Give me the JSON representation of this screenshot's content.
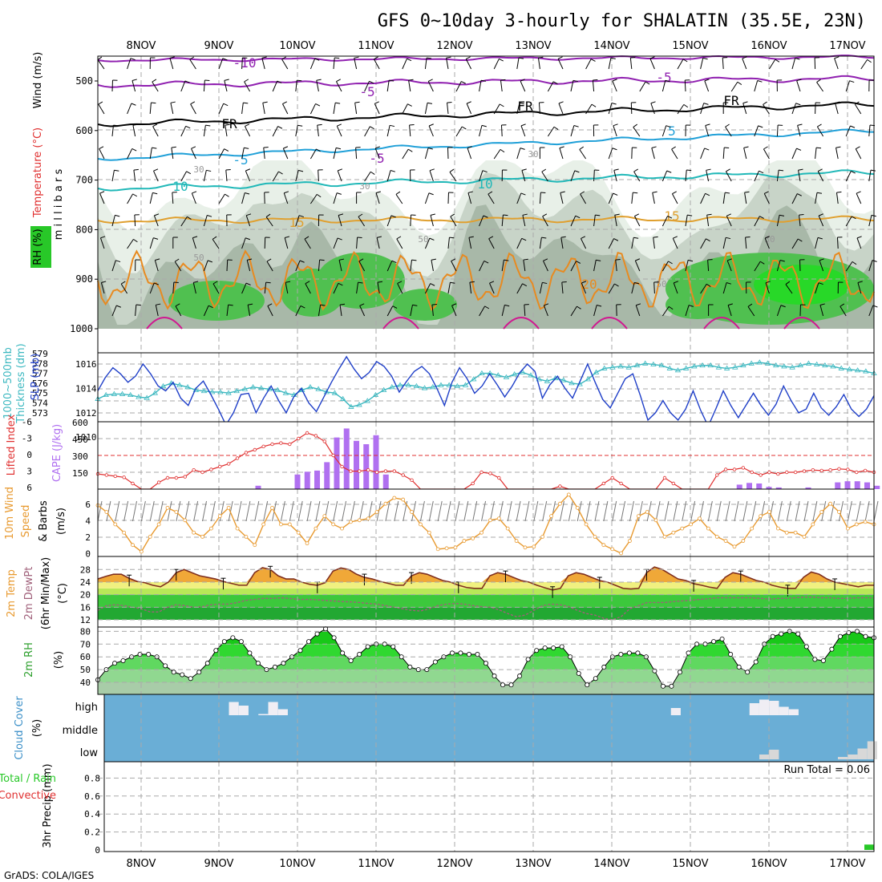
{
  "title": "GFS 0~10day 3-hourly for SHALATIN (35.5E, 23N)",
  "footer": "GrADS: COLA/IGES",
  "dates": [
    "8NOV",
    "9NOV",
    "10NOV",
    "11NOV",
    "12NOV",
    "13NOV",
    "14NOV",
    "15NOV",
    "16NOV",
    "17NOV"
  ],
  "colors": {
    "frame": "#000000",
    "grid": "#aaaaaa",
    "cloud_bg": "#6aaed6",
    "slp": "#1f3fc8",
    "thick": "#3cb8c0",
    "lifted": "#e03030",
    "cape": "#b070f0",
    "wind10": "#e89a30",
    "rh_text": "#2ea02e",
    "precip": "#28c828"
  },
  "upper_air": {
    "ylabels": [
      "Temperature (°C)",
      "Wind (m/s)",
      "RH (%)",
      "m i l l i b a r s"
    ],
    "ticks": [
      "500",
      "600",
      "700",
      "800",
      "900",
      "1000"
    ],
    "contour_labels": [
      "-10",
      "-5",
      "-5",
      "FR",
      "FR",
      "FR",
      "-5",
      "-5",
      "5",
      "10",
      "10",
      "15",
      "15",
      "20",
      "30",
      "30",
      "30",
      "50",
      "50",
      "50",
      "30"
    ]
  },
  "slp_panel": {
    "ylabels": [
      "1000~500mb",
      "Thickness (dm)",
      "SLP (mb)"
    ],
    "left_ticks": [
      "579",
      "578",
      "577",
      "576",
      "575",
      "574",
      "573"
    ],
    "right_ticks": [
      "1016",
      "1014",
      "1012",
      "1010"
    ]
  },
  "cape_panel": {
    "ylabels": [
      "Lifted Index",
      "CAPE (J/kg)"
    ],
    "left_ticks": [
      "-6",
      "-3",
      "0",
      "3",
      "6"
    ],
    "right_ticks": [
      "600",
      "450",
      "300",
      "150"
    ]
  },
  "wind_panel": {
    "ylabels": [
      "10m Wind",
      "Speed",
      "& Barbs",
      "(m/s)"
    ],
    "ticks": [
      "6",
      "4",
      "2",
      "0"
    ]
  },
  "temp_panel": {
    "ylabels": [
      "2m Temp",
      "2m DewPt",
      "(6hr Min/Max)",
      "(°C)"
    ],
    "ticks": [
      "28",
      "24",
      "20",
      "16",
      "12"
    ]
  },
  "rh_panel": {
    "ylabels": [
      "2m RH",
      "(%)"
    ],
    "ticks": [
      "80",
      "70",
      "60",
      "50",
      "40"
    ]
  },
  "cloud_panel": {
    "ylabels": [
      "Cloud Cover",
      "(%)"
    ],
    "levels": [
      "high",
      "middle",
      "low"
    ]
  },
  "precip_panel": {
    "ylabels": [
      "3hr Precip (mm)",
      "Total / Rain",
      "Convective"
    ],
    "ticks": [
      "0.8",
      "0.6",
      "0.4",
      "0.2",
      "0"
    ],
    "run_total": "Run Total = 0.06"
  },
  "chart_data": [
    {
      "type": "line",
      "title": "SLP (mb)",
      "xlabel": "",
      "ylabel": "SLP (mb)",
      "ylim": [
        1010,
        1017
      ],
      "series": [
        {
          "name": "SLP",
          "values": [
            1013.8,
            1014.9,
            1015.7,
            1015.2,
            1014.5,
            1015.0,
            1016.0,
            1015.2,
            1014.2,
            1013.8,
            1014.5,
            1013.2,
            1012.6,
            1014.0,
            1014.6,
            1013.5,
            1012.3,
            1011.0,
            1012.0,
            1013.5,
            1013.6,
            1012.0,
            1013.2,
            1014.2,
            1013.0,
            1012.0,
            1013.3,
            1014.0,
            1012.8,
            1012.1,
            1013.3,
            1014.5,
            1015.6,
            1016.6,
            1015.6,
            1014.8,
            1015.3,
            1016.2,
            1015.8,
            1015.0,
            1013.7,
            1014.6,
            1015.4,
            1015.8,
            1015.2,
            1014.0,
            1012.6,
            1014.5,
            1015.7,
            1014.8,
            1013.6,
            1014.2,
            1015.2,
            1014.3,
            1013.3,
            1014.2,
            1015.3,
            1016.0,
            1015.4,
            1013.2,
            1014.3,
            1015.0,
            1014.0,
            1013.2,
            1014.6,
            1016.0,
            1014.5,
            1013.1,
            1012.4,
            1013.6,
            1014.8,
            1015.2,
            1013.4,
            1011.4,
            1012.0,
            1013.0,
            1012.0,
            1011.4,
            1012.3,
            1013.8,
            1012.2,
            1010.9,
            1012.3,
            1013.8,
            1012.6,
            1011.6,
            1012.6,
            1013.6,
            1012.6,
            1011.8,
            1012.7,
            1014.2,
            1013.0,
            1012.0,
            1012.3,
            1013.6,
            1012.4,
            1011.8,
            1012.5,
            1013.5,
            1012.3,
            1011.7,
            1012.3,
            1013.4
          ]
        }
      ]
    },
    {
      "type": "line",
      "title": "1000~500mb Thickness (dm)",
      "xlabel": "",
      "ylabel": "Thickness (dm)",
      "ylim": [
        573,
        579
      ],
      "series": [
        {
          "name": "Thickness",
          "values": [
            574.4,
            574.8,
            574.9,
            574.9,
            574.8,
            574.6,
            574.5,
            575.0,
            575.7,
            576.0,
            575.8,
            575.6,
            575.3,
            575.2,
            575.1,
            575.1,
            575.0,
            575.2,
            575.4,
            575.6,
            575.5,
            575.4,
            575.3,
            575.0,
            574.8,
            575.3,
            575.6,
            575.4,
            575.1,
            575.0,
            574.4,
            573.6,
            573.8,
            574.2,
            574.8,
            575.3,
            575.6,
            575.8,
            575.8,
            575.7,
            575.5,
            575.6,
            575.8,
            575.8,
            575.7,
            575.8,
            576.4,
            577.0,
            577.0,
            576.8,
            576.6,
            576.9,
            577.1,
            576.8,
            576.4,
            576.2,
            576.5,
            576.3,
            576.0,
            575.9,
            576.4,
            577.1,
            577.5,
            577.6,
            577.7,
            577.6,
            577.8,
            578.0,
            577.9,
            577.8,
            577.5,
            577.3,
            577.5,
            577.7,
            577.8,
            577.8,
            577.6,
            577.5,
            577.6,
            577.8,
            578.0,
            578.1,
            578.0,
            577.8,
            577.7,
            577.6,
            577.8,
            578.0,
            577.9,
            577.8,
            577.7,
            577.5,
            577.4,
            577.3,
            577.2,
            577.0
          ]
        }
      ]
    },
    {
      "type": "line",
      "title": "Lifted Index",
      "xlabel": "",
      "ylabel": "Lifted Index",
      "ylim": [
        -6,
        6
      ],
      "series": [
        {
          "name": "Lifted Index",
          "values": [
            3.3,
            3.5,
            3.7,
            3.9,
            5.0,
            6.0,
            6.5,
            4.8,
            4.0,
            4.0,
            3.8,
            2.6,
            3.0,
            2.5,
            2.0,
            1.5,
            0.5,
            -0.5,
            -1.0,
            -1.6,
            -2.0,
            -2.2,
            -2.0,
            -3.0,
            -4.0,
            -3.5,
            -2.5,
            0.0,
            2.0,
            2.8,
            2.8,
            2.6,
            3.0,
            2.8,
            2.8,
            3.5,
            4.4,
            6.0,
            6.5,
            6.5,
            6.5,
            6.5,
            6.3,
            5.0,
            3.0,
            3.2,
            4.0,
            6.5,
            6.5,
            6.5,
            6.5,
            6.5,
            6.5,
            5.5,
            6.0,
            6.5,
            6.5,
            6.5,
            5.0,
            4.0,
            5.0,
            6.5,
            6.5,
            6.5,
            6.5,
            4.0,
            5.0,
            6.5,
            6.5,
            6.5,
            6.5,
            3.5,
            2.5,
            2.5,
            2.2,
            3.0,
            3.5,
            3.0,
            3.3,
            3.0,
            3.0,
            2.8,
            2.6,
            2.7,
            2.6,
            2.4,
            2.5,
            3.0,
            2.7,
            3.0
          ]
        }
      ]
    },
    {
      "type": "bar",
      "title": "CAPE (J/kg)",
      "xlabel": "",
      "ylabel": "CAPE (J/kg)",
      "ylim": [
        0,
        600
      ],
      "categories": [
        "9NOV 12Z",
        "10NOV 00Z",
        "10NOV 03Z",
        "10NOV 06Z",
        "10NOV 09Z",
        "10NOV 12Z",
        "10NOV 15Z",
        "10NOV 18Z",
        "10NOV 21Z",
        "11NOV 00Z",
        "11NOV 03Z",
        "15NOV 15Z",
        "15NOV 18Z",
        "15NOV 21Z",
        "16NOV 00Z",
        "16NOV 03Z",
        "16NOV 12Z",
        "16NOV 21Z",
        "17NOV 00Z",
        "17NOV 03Z",
        "17NOV 06Z",
        "17NOV 09Z"
      ],
      "values": [
        30,
        130,
        155,
        165,
        240,
        460,
        540,
        430,
        400,
        480,
        130,
        40,
        55,
        50,
        20,
        15,
        15,
        60,
        70,
        70,
        60,
        30
      ]
    },
    {
      "type": "line",
      "title": "10m Wind Speed (m/s)",
      "xlabel": "",
      "ylabel": "Speed (m/s)",
      "ylim": [
        0,
        7
      ],
      "series": [
        {
          "name": "Wind speed",
          "values": [
            5.8,
            5.0,
            3.5,
            2.5,
            1.0,
            0.2,
            2.0,
            3.5,
            5.5,
            5.0,
            4.0,
            2.5,
            2.0,
            3.0,
            4.5,
            5.5,
            3.0,
            2.0,
            1.0,
            3.5,
            5.5,
            3.5,
            3.5,
            2.5,
            1.2,
            3.0,
            4.5,
            3.5,
            3.0,
            3.8,
            4.0,
            4.2,
            5.0,
            6.0,
            6.7,
            6.5,
            5.0,
            3.5,
            2.5,
            0.5,
            0.6,
            0.7,
            1.5,
            1.8,
            2.5,
            4.0,
            4.2,
            3.0,
            1.5,
            0.7,
            0.8,
            2.0,
            4.5,
            6.0,
            7.1,
            5.5,
            3.5,
            2.0,
            1.0,
            0.5,
            0.0,
            1.5,
            4.5,
            5.0,
            4.0,
            2.0,
            2.5,
            3.0,
            3.5,
            4.2,
            3.0,
            2.0,
            1.5,
            0.8,
            1.5,
            3.0,
            4.5,
            5.0,
            3.0,
            2.5,
            2.5,
            2.0,
            3.5,
            5.0,
            6.0,
            5.0,
            3.0,
            3.5,
            3.8,
            3.5
          ]
        }
      ]
    },
    {
      "type": "area",
      "title": "2m Temp / DewPt (°C)",
      "xlabel": "",
      "ylabel": "°C",
      "ylim": [
        10,
        30
      ],
      "series": [
        {
          "name": "2m Temp",
          "values": [
            25.0,
            25.8,
            26.5,
            26.5,
            25.2,
            24.2,
            23.8,
            23.0,
            22.5,
            24.0,
            27.0,
            28.0,
            27.0,
            26.0,
            25.5,
            25.0,
            24.2,
            23.6,
            23.0,
            23.0,
            27.0,
            28.6,
            28.0,
            26.0,
            25.0,
            25.0,
            24.0,
            23.3,
            23.0,
            23.8,
            27.5,
            28.5,
            28.0,
            26.5,
            25.5,
            25.0,
            24.2,
            23.6,
            23.0,
            23.0,
            26.0,
            27.0,
            26.5,
            25.5,
            24.5,
            24.0,
            23.0,
            22.3,
            22.0,
            22.0,
            26.0,
            27.0,
            26.5,
            25.5,
            24.5,
            24.0,
            23.0,
            22.2,
            21.5,
            22.0,
            26.0,
            27.0,
            26.5,
            25.5,
            24.5,
            24.0,
            23.0,
            22.0,
            21.8,
            22.0,
            27.0,
            28.8,
            28.0,
            26.5,
            25.0,
            24.5,
            23.5,
            23.0,
            22.4,
            22.0,
            25.5,
            27.0,
            26.5,
            25.5,
            24.5,
            24.0,
            23.0,
            22.4,
            22.0,
            22.0,
            25.5,
            27.2,
            26.5,
            25.0,
            24.0,
            23.5,
            23.0,
            22.5,
            23.0,
            23.0
          ]
        },
        {
          "name": "2m DewPt",
          "values": [
            15.0,
            16.5,
            16.8,
            16.5,
            16.0,
            15.5,
            14.5,
            14.5,
            16.0,
            16.8,
            16.5,
            16.0,
            16.2,
            16.8,
            17.0,
            17.0,
            17.5,
            18.2,
            18.5,
            18.8,
            18.8,
            19.0,
            18.8,
            18.5,
            18.5,
            18.4,
            18.2,
            18.0,
            17.8,
            17.7,
            17.5,
            17.2,
            17.0,
            16.5,
            16.0,
            15.5,
            15.0,
            14.8,
            15.5,
            16.5,
            17.0,
            17.2,
            17.0,
            16.5,
            16.2,
            16.0,
            15.2,
            14.0,
            13.0,
            13.5,
            15.0,
            16.5,
            17.0,
            16.8,
            16.2,
            15.0,
            14.0,
            13.5,
            12.5,
            12.0,
            13.0,
            15.5,
            16.5,
            17.5,
            17.5,
            17.5,
            17.8,
            18.0,
            18.2,
            18.5,
            18.7,
            19.0,
            19.0,
            19.0,
            19.0,
            19.0,
            18.8,
            18.6,
            18.8,
            18.8,
            19.0,
            19.2,
            19.2,
            19.0,
            19.0,
            18.8,
            18.8,
            19.0,
            19.0,
            19.0
          ]
        }
      ]
    },
    {
      "type": "area",
      "title": "2m RH (%)",
      "xlabel": "",
      "ylabel": "%",
      "ylim": [
        30,
        85
      ],
      "series": [
        {
          "name": "2m RH",
          "values": [
            42,
            50,
            55,
            57,
            60,
            62,
            62,
            60,
            53,
            48,
            46,
            43,
            48,
            55,
            65,
            72,
            75,
            72,
            63,
            55,
            50,
            52,
            55,
            60,
            65,
            72,
            78,
            82,
            75,
            63,
            57,
            62,
            68,
            70,
            70,
            68,
            60,
            52,
            50,
            50,
            56,
            60,
            63,
            63,
            62,
            62,
            55,
            45,
            38,
            38,
            45,
            58,
            65,
            67,
            67,
            68,
            60,
            47,
            38,
            43,
            52,
            60,
            62,
            63,
            63,
            60,
            49,
            37,
            37,
            48,
            63,
            70,
            70,
            72,
            74,
            62,
            52,
            48,
            56,
            70,
            76,
            78,
            80,
            78,
            68,
            58,
            57,
            66,
            76,
            79,
            80,
            76,
            75
          ]
        }
      ]
    },
    {
      "type": "bar",
      "title": "Cloud Cover (%)",
      "xlabel": "",
      "ylabel": "%",
      "ylim": [
        0,
        100
      ],
      "series": [
        {
          "name": "high",
          "categories": [
            "9NOV 06Z",
            "9NOV 09Z",
            "9NOV 15Z",
            "9NOV 18Z",
            "9NOV 21Z",
            "14NOV 21Z",
            "15NOV 21Z",
            "16NOV 00Z",
            "16NOV 03Z",
            "16NOV 06Z",
            "16NOV 09Z"
          ],
          "values": [
            55,
            40,
            5,
            55,
            25,
            30,
            50,
            65,
            60,
            35,
            25
          ]
        },
        {
          "name": "low",
          "categories": [
            "16NOV 00Z",
            "16NOV 03Z",
            "17NOV 00Z",
            "17NOV 03Z",
            "17NOV 06Z",
            "17NOV 09Z"
          ],
          "values": [
            20,
            40,
            10,
            20,
            45,
            75
          ]
        }
      ]
    },
    {
      "type": "bar",
      "title": "3hr Precip (mm)",
      "xlabel": "",
      "ylabel": "3hr Precip (mm)",
      "ylim": [
        0,
        1.0
      ],
      "categories": [
        "17NOV 06Z"
      ],
      "values": [
        0.06
      ]
    }
  ]
}
